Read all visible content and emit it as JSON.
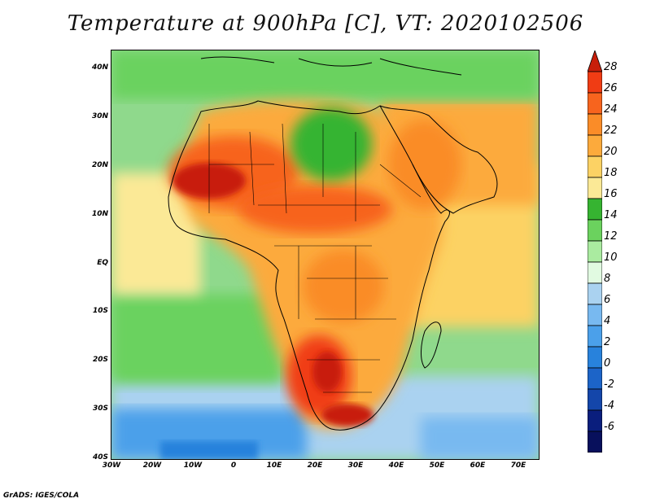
{
  "title": "Temperature at 900hPa [C], VT: 2020102506",
  "credit": "GrADS: IGES/COLA",
  "map": {
    "projection": "lat-lon",
    "lon_range": [
      -30,
      75
    ],
    "lat_range": [
      -40,
      45
    ],
    "lon_ticks": [
      "30W",
      "20W",
      "10W",
      "0",
      "10E",
      "20E",
      "30E",
      "40E",
      "50E",
      "60E",
      "70E"
    ],
    "lat_ticks": [
      "40N",
      "30N",
      "20N",
      "10N",
      "EQ",
      "10S",
      "20S",
      "30S",
      "40S"
    ],
    "variable": "Temperature",
    "level": "900hPa",
    "units": "C",
    "valid_time": "2020102506"
  },
  "colorbar": {
    "levels": [
      "28",
      "26",
      "24",
      "22",
      "20",
      "18",
      "16",
      "14",
      "12",
      "10",
      "8",
      "6",
      "4",
      "2",
      "0",
      "-2",
      "-4",
      "-6"
    ],
    "colors": [
      "#c81e0a",
      "#f03c14",
      "#f7641e",
      "#fa8c28",
      "#fcaa3c",
      "#fcd264",
      "#fbe996",
      "#36b431",
      "#6bd25e",
      "#aaeba0",
      "#e1fae1",
      "#aad2f0",
      "#78b9f0",
      "#4ba0ea",
      "#2882dc",
      "#1c64c8",
      "#1446aa",
      "#0a1e7d",
      "#08105c",
      "#d9d0f8"
    ]
  }
}
